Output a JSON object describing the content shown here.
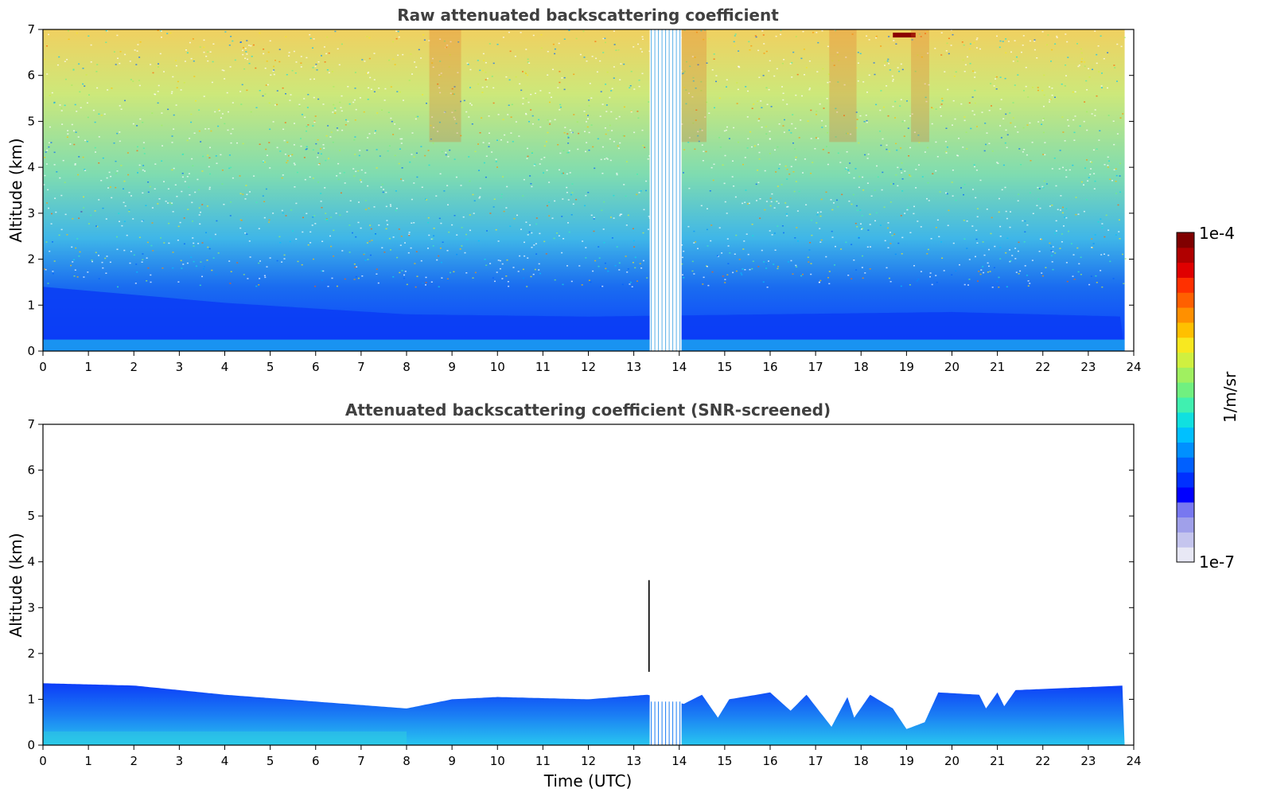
{
  "chart_data": [
    {
      "type": "heatmap",
      "title": "Raw attenuated backscattering coefficient",
      "xlabel": "",
      "ylabel": "Altitude (km)",
      "xlim": [
        0,
        24
      ],
      "ylim": [
        0,
        7
      ],
      "xticks": [
        "0",
        "1",
        "2",
        "3",
        "4",
        "5",
        "6",
        "7",
        "8",
        "9",
        "10",
        "11",
        "12",
        "13",
        "14",
        "15",
        "16",
        "17",
        "18",
        "19",
        "20",
        "21",
        "22",
        "23",
        "24"
      ],
      "yticks": [
        "0",
        "1",
        "2",
        "3",
        "4",
        "5",
        "6",
        "7"
      ],
      "data_end_hour": 23.8,
      "gap_hours": [
        13.35,
        14.05
      ],
      "boundary_layer_top_km": [
        {
          "hour": 0,
          "value": 1.4
        },
        {
          "hour": 4,
          "value": 1.05
        },
        {
          "hour": 8,
          "value": 0.8
        },
        {
          "hour": 12,
          "value": 0.75
        },
        {
          "hour": 16,
          "value": 0.8
        },
        {
          "hour": 20,
          "value": 0.85
        },
        {
          "hour": 23.8,
          "value": 0.75
        }
      ],
      "features": [
        {
          "hour_start": 18.7,
          "hour_end": 19.2,
          "altitude_km": 6.85,
          "value": "1e-4"
        }
      ]
    },
    {
      "type": "heatmap",
      "title": "Attenuated backscattering coefficient (SNR-screened)",
      "xlabel": "Time (UTC)",
      "ylabel": "Altitude (km)",
      "xlim": [
        0,
        24
      ],
      "ylim": [
        0,
        7
      ],
      "xticks": [
        "0",
        "1",
        "2",
        "3",
        "4",
        "5",
        "6",
        "7",
        "8",
        "9",
        "10",
        "11",
        "12",
        "13",
        "14",
        "15",
        "16",
        "17",
        "18",
        "19",
        "20",
        "21",
        "22",
        "23",
        "24"
      ],
      "yticks": [
        "0",
        "1",
        "2",
        "3",
        "4",
        "5",
        "6",
        "7"
      ],
      "data_end_hour": 23.8,
      "gap_hours": [
        13.35,
        14.05
      ],
      "signal_top_km": [
        {
          "hour": 0,
          "value": 1.35
        },
        {
          "hour": 2,
          "value": 1.3
        },
        {
          "hour": 4,
          "value": 1.1
        },
        {
          "hour": 6,
          "value": 0.95
        },
        {
          "hour": 8,
          "value": 0.8
        },
        {
          "hour": 9,
          "value": 1.0
        },
        {
          "hour": 10,
          "value": 1.05
        },
        {
          "hour": 12,
          "value": 1.0
        },
        {
          "hour": 13.3,
          "value": 1.1
        },
        {
          "hour": 14.1,
          "value": 0.9
        },
        {
          "hour": 14.5,
          "value": 1.1
        },
        {
          "hour": 14.85,
          "value": 0.6
        },
        {
          "hour": 15.1,
          "value": 1.0
        },
        {
          "hour": 16,
          "value": 1.15
        },
        {
          "hour": 16.45,
          "value": 0.75
        },
        {
          "hour": 16.8,
          "value": 1.1
        },
        {
          "hour": 17.35,
          "value": 0.4
        },
        {
          "hour": 17.7,
          "value": 1.05
        },
        {
          "hour": 17.85,
          "value": 0.6
        },
        {
          "hour": 18.2,
          "value": 1.1
        },
        {
          "hour": 18.7,
          "value": 0.8
        },
        {
          "hour": 19.0,
          "value": 0.35
        },
        {
          "hour": 19.4,
          "value": 0.5
        },
        {
          "hour": 19.7,
          "value": 1.15
        },
        {
          "hour": 20.6,
          "value": 1.1
        },
        {
          "hour": 20.75,
          "value": 0.8
        },
        {
          "hour": 21.0,
          "value": 1.15
        },
        {
          "hour": 21.15,
          "value": 0.85
        },
        {
          "hour": 21.4,
          "value": 1.2
        },
        {
          "hour": 23.8,
          "value": 1.3
        }
      ]
    }
  ],
  "colorbar": {
    "label": "1/m/sr",
    "max_label": "1e-4",
    "min_label": "1e-7",
    "colors": [
      "#e8e8f5",
      "#c5c5ee",
      "#a0a0ea",
      "#7878f0",
      "#0000ff",
      "#0030ff",
      "#0060ff",
      "#0090ff",
      "#00c0ff",
      "#10e0e0",
      "#40f0b0",
      "#70f080",
      "#a0f060",
      "#d0f040",
      "#f8e820",
      "#ffc000",
      "#ff9000",
      "#ff6000",
      "#ff3000",
      "#e00000",
      "#b00000",
      "#800000"
    ]
  }
}
